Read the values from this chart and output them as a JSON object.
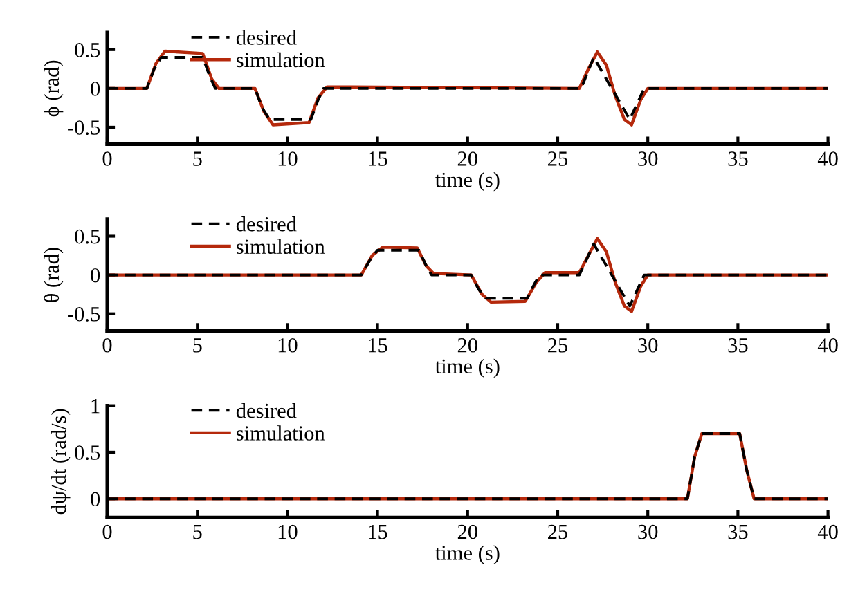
{
  "chart_data": [
    {
      "type": "line",
      "ylabel": "ϕ (rad)",
      "xlabel": "time (s)",
      "xlim": [
        0,
        40
      ],
      "xticks": [
        0,
        5,
        10,
        15,
        20,
        25,
        30,
        35,
        40
      ],
      "ylim": [
        -0.72,
        0.72
      ],
      "yticks": [
        {
          "value": -0.5,
          "label": "-0.5"
        },
        0,
        0.5
      ],
      "legend": "top left",
      "grid": false,
      "series": [
        {
          "name": "desired",
          "color": "#000000",
          "line_style": "dashed",
          "x": [
            0,
            2.2,
            2.6,
            3.0,
            5.3,
            5.7,
            6.0,
            8.2,
            8.6,
            9.0,
            11.3,
            11.7,
            12.0,
            26.3,
            27.0,
            28.0,
            29.0,
            29.8,
            40
          ],
          "values": [
            0,
            0,
            0.25,
            0.4,
            0.4,
            0.15,
            0,
            0,
            -0.25,
            -0.4,
            -0.4,
            -0.15,
            0,
            0,
            0.4,
            0,
            -0.4,
            0,
            0
          ]
        },
        {
          "name": "simulation",
          "color": "#b5290c",
          "line_style": "solid",
          "x": [
            0,
            2.2,
            2.7,
            3.2,
            5.3,
            5.8,
            6.2,
            8.2,
            8.7,
            9.2,
            11.2,
            11.7,
            12.2,
            26.2,
            26.7,
            27.2,
            27.7,
            28.2,
            28.7,
            29.1,
            29.6,
            30.0,
            40
          ],
          "values": [
            0,
            0,
            0.32,
            0.48,
            0.45,
            0.12,
            0,
            0,
            -0.3,
            -0.47,
            -0.44,
            -0.12,
            0.02,
            0,
            0.25,
            0.47,
            0.3,
            -0.1,
            -0.4,
            -0.47,
            -0.15,
            0,
            0
          ]
        }
      ]
    },
    {
      "type": "line",
      "ylabel": "θ (rad)",
      "xlabel": "time (s)",
      "xlim": [
        0,
        40
      ],
      "xticks": [
        0,
        5,
        10,
        15,
        20,
        25,
        30,
        35,
        40
      ],
      "ylim": [
        -0.72,
        0.72
      ],
      "yticks": [
        {
          "value": -0.5,
          "label": "-0.5"
        },
        0,
        0.5
      ],
      "legend": "top left",
      "grid": false,
      "series": [
        {
          "name": "desired",
          "color": "#000000",
          "line_style": "dashed",
          "x": [
            0,
            14.1,
            14.6,
            15.0,
            17.3,
            17.7,
            18.0,
            20.2,
            20.6,
            21.0,
            23.3,
            23.7,
            24.0,
            26.2,
            27.0,
            28.0,
            29.0,
            29.8,
            40
          ],
          "values": [
            0,
            0,
            0.2,
            0.32,
            0.32,
            0.12,
            0,
            0,
            -0.18,
            -0.3,
            -0.3,
            -0.12,
            0,
            0,
            0.4,
            0,
            -0.4,
            0,
            0
          ]
        },
        {
          "name": "simulation",
          "color": "#b5290c",
          "line_style": "solid",
          "x": [
            0,
            14.1,
            14.7,
            15.3,
            17.2,
            17.7,
            18.1,
            20.2,
            20.8,
            21.3,
            23.2,
            23.8,
            24.3,
            26.2,
            26.7,
            27.2,
            27.7,
            28.2,
            28.7,
            29.1,
            29.6,
            30.0,
            40
          ],
          "values": [
            0,
            0,
            0.25,
            0.36,
            0.35,
            0.12,
            0.02,
            0,
            -0.25,
            -0.35,
            -0.34,
            -0.1,
            0.03,
            0.03,
            0.25,
            0.47,
            0.3,
            -0.1,
            -0.4,
            -0.47,
            -0.15,
            0,
            0
          ]
        }
      ]
    },
    {
      "type": "line",
      "ylabel": "dψ/dt (rad/s)",
      "xlabel": "time (s)",
      "xlim": [
        0,
        40
      ],
      "xticks": [
        0,
        5,
        10,
        15,
        20,
        25,
        30,
        35,
        40
      ],
      "ylim": [
        -0.2,
        1
      ],
      "yticks": [
        0,
        0.5,
        1
      ],
      "legend": "top left",
      "grid": false,
      "series": [
        {
          "name": "desired",
          "color": "#000000",
          "line_style": "dashed",
          "x": [
            0,
            32.2,
            32.6,
            33.0,
            35.1,
            35.5,
            35.9,
            40
          ],
          "values": [
            0,
            0,
            0.45,
            0.7,
            0.7,
            0.3,
            0,
            0
          ]
        },
        {
          "name": "simulation",
          "color": "#b5290c",
          "line_style": "solid",
          "x": [
            0,
            32.2,
            32.6,
            33.0,
            35.1,
            35.5,
            35.9,
            40
          ],
          "values": [
            0,
            0,
            0.45,
            0.7,
            0.7,
            0.3,
            0,
            0
          ]
        }
      ]
    }
  ]
}
